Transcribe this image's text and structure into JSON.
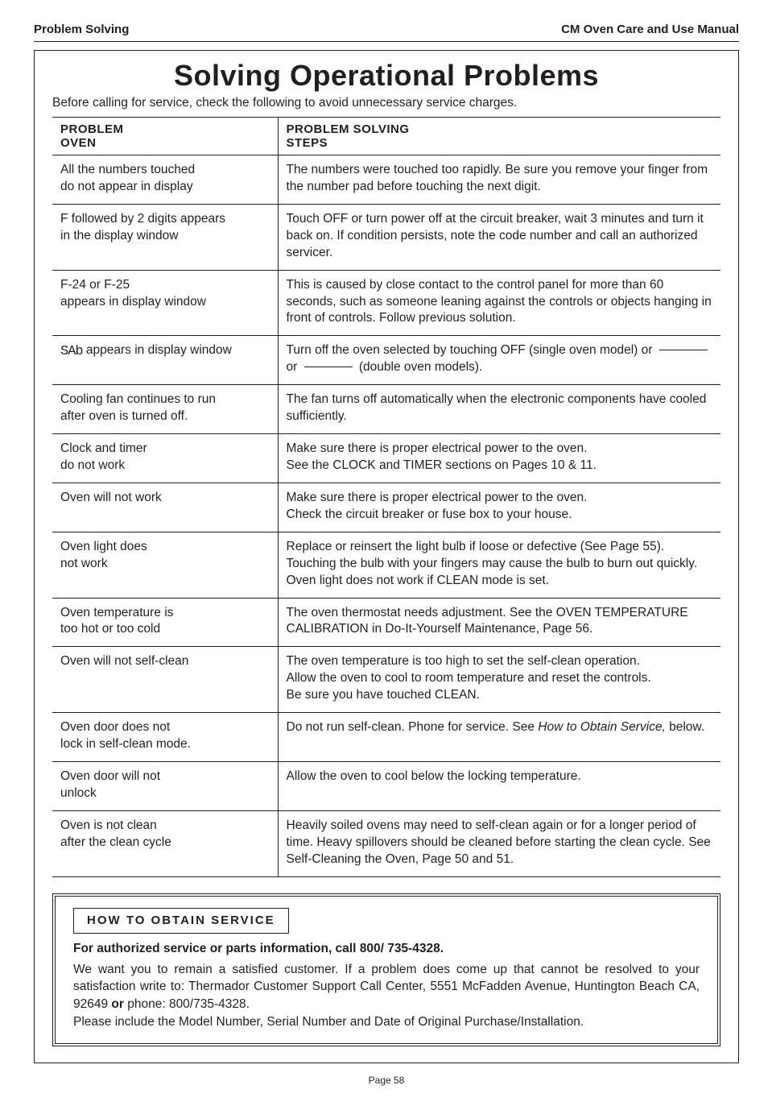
{
  "header": {
    "section": "Problem Solving",
    "manual": "CM Oven Care and Use Manual"
  },
  "title": "Solving Operational Problems",
  "intro": "Before calling for service, check the following to avoid unnecessary service charges.",
  "table": {
    "col1_header_l1": "PROBLEM",
    "col1_header_l2": "OVEN",
    "col2_header_l1": "PROBLEM SOLVING",
    "col2_header_l2": "STEPS",
    "rows": [
      {
        "problem_l1": "All the numbers touched",
        "problem_l2": "do not appear in display",
        "solution": "The numbers were touched too rapidly.  Be sure you remove your finger from the number pad before touching the next digit."
      },
      {
        "problem_l1": "F followed by 2 digits appears",
        "problem_l2": "in the display window",
        "solution": "Touch OFF or turn power off at the circuit breaker, wait 3 minutes and turn it back on.  If condition persists, note the code number and call an authorized servicer."
      },
      {
        "problem_l1": "F-24 or F-25",
        "problem_l2": "appears in display window",
        "solution": "This is caused by close contact to the control panel for more than 60 seconds, such as someone leaning against the controls or objects hanging in front of controls. Follow previous solution."
      },
      {
        "sab": true,
        "problem_suffix": " appears in display window",
        "solution_pre": "Turn off the oven selected by touching OFF (single oven model) or ",
        "solution_mid": " or ",
        "solution_post": "  (double oven models)."
      },
      {
        "problem_l1": "Cooling fan continues to run",
        "problem_l2": "after oven is turned off.",
        "solution": "The fan turns off automatically when the electronic components have cooled sufficiently."
      },
      {
        "problem_l1": "Clock and timer",
        "problem_l2": "do not work",
        "solution": "Make sure there is proper electrical power to the oven.\nSee the CLOCK and TIMER sections on Pages 10 & 11."
      },
      {
        "problem_l1": "Oven will not work",
        "problem_l2": "",
        "solution": "Make sure there is proper electrical power to the oven.\nCheck the circuit breaker or fuse box to your house."
      },
      {
        "problem_l1": "Oven light does",
        "problem_l2": "not work",
        "solution": "Replace or reinsert the light bulb if loose or defective (See Page 55). Touching the bulb with your fingers may cause the bulb to burn out quickly. Oven light does not work if CLEAN mode is set."
      },
      {
        "problem_l1": "Oven temperature is",
        "problem_l2": "too hot or too cold",
        "solution": "The oven thermostat needs adjustment.  See the OVEN TEMPERATURE CALIBRATION in Do-It-Yourself Maintenance, Page 56."
      },
      {
        "problem_l1": "Oven will not self-clean",
        "problem_l2": "",
        "solution": "The oven temperature is too high to set the self-clean operation.\nAllow the oven to cool to room temperature and reset the controls.\nBe sure you have touched CLEAN."
      },
      {
        "door_lock": true,
        "problem_l1": "Oven door does not",
        "problem_l2": "lock in self-clean mode.",
        "sol_pre": "Do not run self-clean. Phone for service. See ",
        "sol_italic": "How to Obtain Service,",
        "sol_post": " below."
      },
      {
        "problem_l1": "Oven door will not",
        "problem_l2": "unlock",
        "solution": "Allow the oven to cool below the locking temperature."
      },
      {
        "problem_l1": "Oven is not clean",
        "problem_l2": "after the clean cycle",
        "solution": "Heavily soiled ovens may need to self-clean again or for a longer period of time.  Heavy spillovers should be cleaned before starting the clean cycle.  See Self-Cleaning the Oven, Page 50 and 51."
      }
    ]
  },
  "service": {
    "title": "HOW  TO  OBTAIN   SERVICE",
    "subtitle": "For authorized service or parts information, call 800/ 735-4328.",
    "body_1": "We want you to remain a satisfied customer.  If a problem does come up that cannot be resolved to your satisfaction write to:  Thermador Customer Support Call Center, 5551 McFadden Avenue, Huntington Beach CA, 92649 ",
    "body_bold": "or",
    "body_2": " phone: 800/735-4328.",
    "body_3": "Please include the Model Number, Serial Number and Date of Original Purchase/Installation."
  },
  "page_number": "Page 58"
}
